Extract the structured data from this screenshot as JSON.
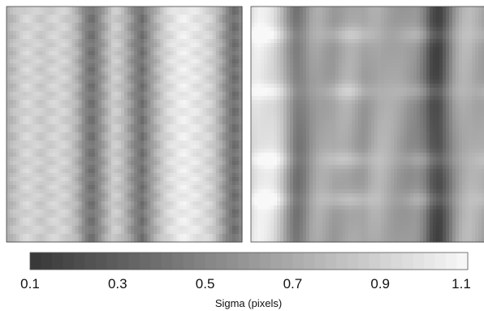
{
  "chart_data": [
    {
      "type": "heatmap",
      "panel": "left",
      "colormap": "gray",
      "value_range": [
        0.1,
        1.1
      ],
      "description_of_field": "vertical banded structure",
      "column_profile": [
        0.62,
        0.7,
        0.78,
        0.82,
        0.8,
        0.76,
        0.78,
        0.82,
        0.8,
        0.74,
        0.62,
        0.4,
        0.3,
        0.44,
        0.62,
        0.78,
        0.72,
        0.58,
        0.4,
        0.3,
        0.48,
        0.64,
        0.78,
        0.86,
        0.92,
        0.94,
        0.92,
        0.88,
        0.84,
        0.76,
        0.6,
        0.4,
        0.28,
        0.44
      ],
      "row_modulation": 0.05
    },
    {
      "type": "heatmap",
      "panel": "right",
      "colormap": "gray",
      "value_range": [
        0.1,
        1.1
      ],
      "description_of_field": "vertical bands with horizontal ridges",
      "column_profile": [
        0.86,
        0.92,
        0.9,
        0.86,
        0.72,
        0.5,
        0.32,
        0.38,
        0.52,
        0.58,
        0.56,
        0.54,
        0.58,
        0.6,
        0.56,
        0.52,
        0.58,
        0.62,
        0.6,
        0.56,
        0.52,
        0.48,
        0.46,
        0.34,
        0.12,
        0.08,
        0.28,
        0.5,
        0.62,
        0.64,
        0.6,
        0.56
      ],
      "row_ridges": [
        0.12,
        0.36,
        0.65,
        0.82
      ],
      "ridge_strength": 0.16
    }
  ],
  "colorbar": {
    "min": 0.1,
    "max": 1.1,
    "steps": 40,
    "tick_values": [
      0.1,
      0.3,
      0.5,
      0.7,
      0.9,
      1.1
    ],
    "tick_labels": [
      "0.1",
      "0.3",
      "0.5",
      "0.7",
      "0.9",
      "1.1"
    ],
    "title": "Sigma (pixels)"
  }
}
